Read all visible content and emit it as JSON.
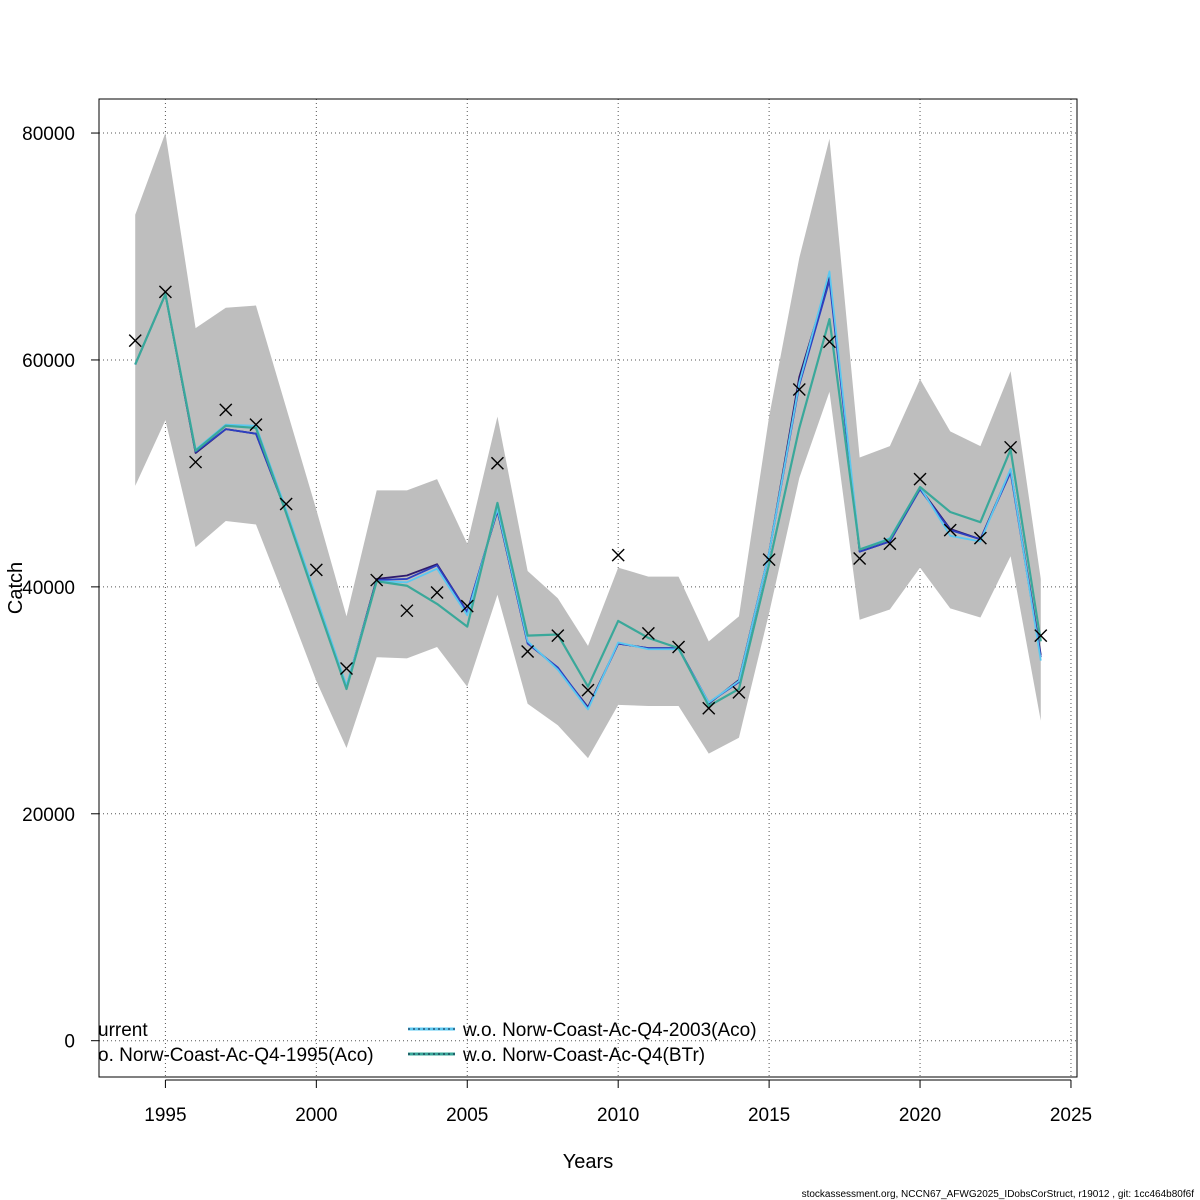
{
  "chart_data": {
    "type": "line",
    "xlabel": "Years",
    "ylabel": "Catch",
    "xlim": [
      1992.8,
      2025.2
    ],
    "ylim": [
      -3200,
      83000
    ],
    "x_ticks": [
      1995,
      2000,
      2005,
      2010,
      2015,
      2020,
      2025
    ],
    "y_ticks": [
      0,
      20000,
      40000,
      60000,
      80000
    ],
    "grid": true,
    "legend_position": "bottom-left",
    "x": [
      1994,
      1995,
      1996,
      1997,
      1998,
      1999,
      2000,
      2001,
      2002,
      2003,
      2004,
      2005,
      2006,
      2007,
      2008,
      2009,
      2010,
      2011,
      2012,
      2013,
      2014,
      2015,
      2016,
      2017,
      2018,
      2019,
      2020,
      2021,
      2022,
      2023,
      2024
    ],
    "confidence_band": {
      "upper": [
        72800,
        80000,
        62800,
        64600,
        64800,
        55800,
        46800,
        37400,
        48500,
        48500,
        49500,
        43800,
        55000,
        41400,
        39000,
        34800,
        41700,
        40900,
        40900,
        35200,
        37400,
        55000,
        69000,
        79500,
        51400,
        52400,
        58300,
        53700,
        52400,
        59000,
        40700
      ],
      "lower": [
        48900,
        54700,
        43500,
        45800,
        45500,
        38700,
        31700,
        25800,
        33800,
        33700,
        34700,
        31200,
        39300,
        29700,
        27800,
        24900,
        29600,
        29500,
        29500,
        25300,
        26700,
        37700,
        49600,
        57200,
        37100,
        38000,
        41700,
        38100,
        37300,
        42700,
        28200
      ],
      "color": "#bebebe"
    },
    "series": [
      {
        "name": "urrent",
        "color": "#2e1a6e",
        "values": [
          59600,
          65800,
          51800,
          53900,
          53500,
          46600,
          39000,
          31200,
          40700,
          41000,
          42000,
          37800,
          46700,
          35100,
          32800,
          29400,
          35000,
          34600,
          34600,
          29700,
          31800,
          43000,
          58500,
          67300,
          43100,
          44000,
          48700,
          45100,
          44200,
          50300,
          34000
        ]
      },
      {
        "name": "o. Norw-Coast-Ac-Q4-1995(Aco)",
        "color": "#2d3fc0",
        "values": [
          59600,
          65800,
          51900,
          53900,
          53500,
          46600,
          39000,
          31200,
          40600,
          40700,
          41900,
          37800,
          46800,
          35000,
          32900,
          29300,
          35000,
          34600,
          34600,
          29800,
          31600,
          43000,
          57800,
          67000,
          43100,
          44000,
          48600,
          45000,
          44200,
          50100,
          33800
        ]
      },
      {
        "name": "w.o. Norw-Coast-Ac-Q4-2003(Aco)",
        "color": "#5bc8f0",
        "dashed": true,
        "values": [
          59600,
          65800,
          52100,
          54300,
          54200,
          46800,
          39100,
          31300,
          40500,
          40400,
          41600,
          37500,
          46900,
          35200,
          32700,
          29200,
          35100,
          34500,
          34500,
          29800,
          31700,
          43000,
          58000,
          67800,
          43300,
          44300,
          48800,
          44500,
          44000,
          50400,
          33500
        ]
      },
      {
        "name": "w.o. Norw-Coast-Ac-Q4(BTr)",
        "color": "#3aa89a",
        "dashed": true,
        "values": [
          59600,
          65800,
          52000,
          54200,
          54000,
          46500,
          38700,
          31000,
          40500,
          40100,
          38500,
          36500,
          47400,
          35700,
          35800,
          31200,
          37000,
          35500,
          34600,
          29500,
          31000,
          42000,
          54000,
          63600,
          43300,
          44200,
          48800,
          46600,
          45700,
          52100,
          35200
        ]
      }
    ],
    "observed": {
      "marker": "x",
      "values": [
        61700,
        66000,
        51000,
        55600,
        54300,
        47300,
        41500,
        32800,
        40600,
        37900,
        39500,
        38300,
        50900,
        34300,
        35700,
        30900,
        42800,
        35900,
        34700,
        29300,
        30700,
        42400,
        57400,
        61600,
        42500,
        43800,
        49500,
        45000,
        44300,
        52300,
        35700
      ]
    },
    "legend": [
      {
        "label": "urrent",
        "color": "#2e1a6e"
      },
      {
        "label": "o. Norw-Coast-Ac-Q4-1995(Aco)",
        "color": "#2d3fc0"
      },
      {
        "label": "w.o. Norw-Coast-Ac-Q4-2003(Aco)",
        "color": "#5bc8f0"
      },
      {
        "label": "w.o. Norw-Coast-Ac-Q4(BTr)",
        "color": "#3aa89a"
      }
    ],
    "footer": "stockassessment.org, NCCN67_AFWG2025_IDobsCorStruct, r19012 , git: 1cc464b80f6f"
  }
}
